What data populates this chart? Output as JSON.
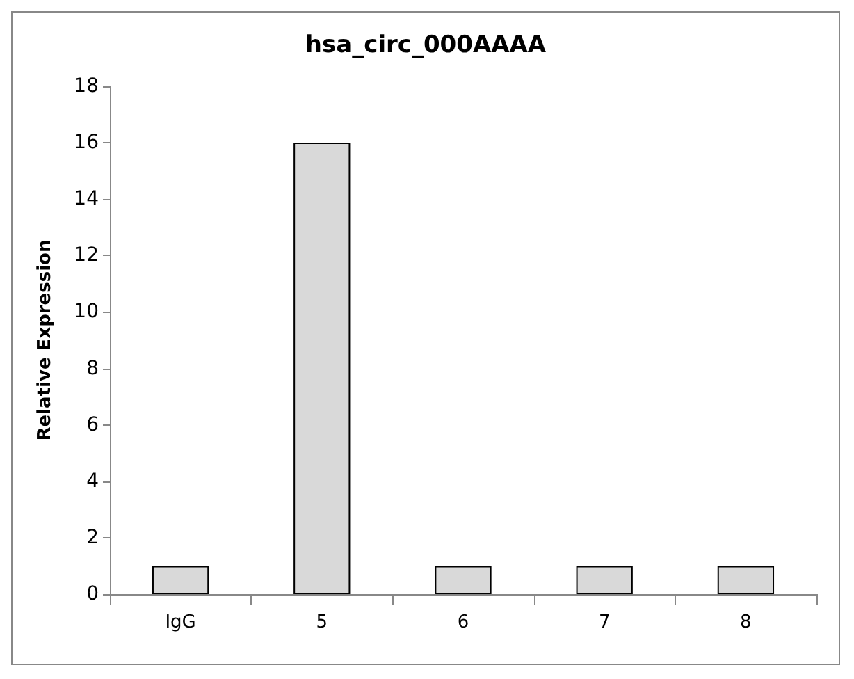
{
  "chart_data": {
    "type": "bar",
    "title": "hsa_circ_000AAAA",
    "ylabel": "Relative Expression",
    "categories": [
      "IgG",
      "5",
      "6",
      "7",
      "8"
    ],
    "values": [
      1,
      16,
      1,
      1,
      1
    ],
    "color": "#d9d9d9",
    "ylim": [
      0,
      18
    ],
    "yticks": [
      0,
      2,
      4,
      6,
      8,
      10,
      12,
      14,
      16,
      18
    ],
    "grid": false
  }
}
